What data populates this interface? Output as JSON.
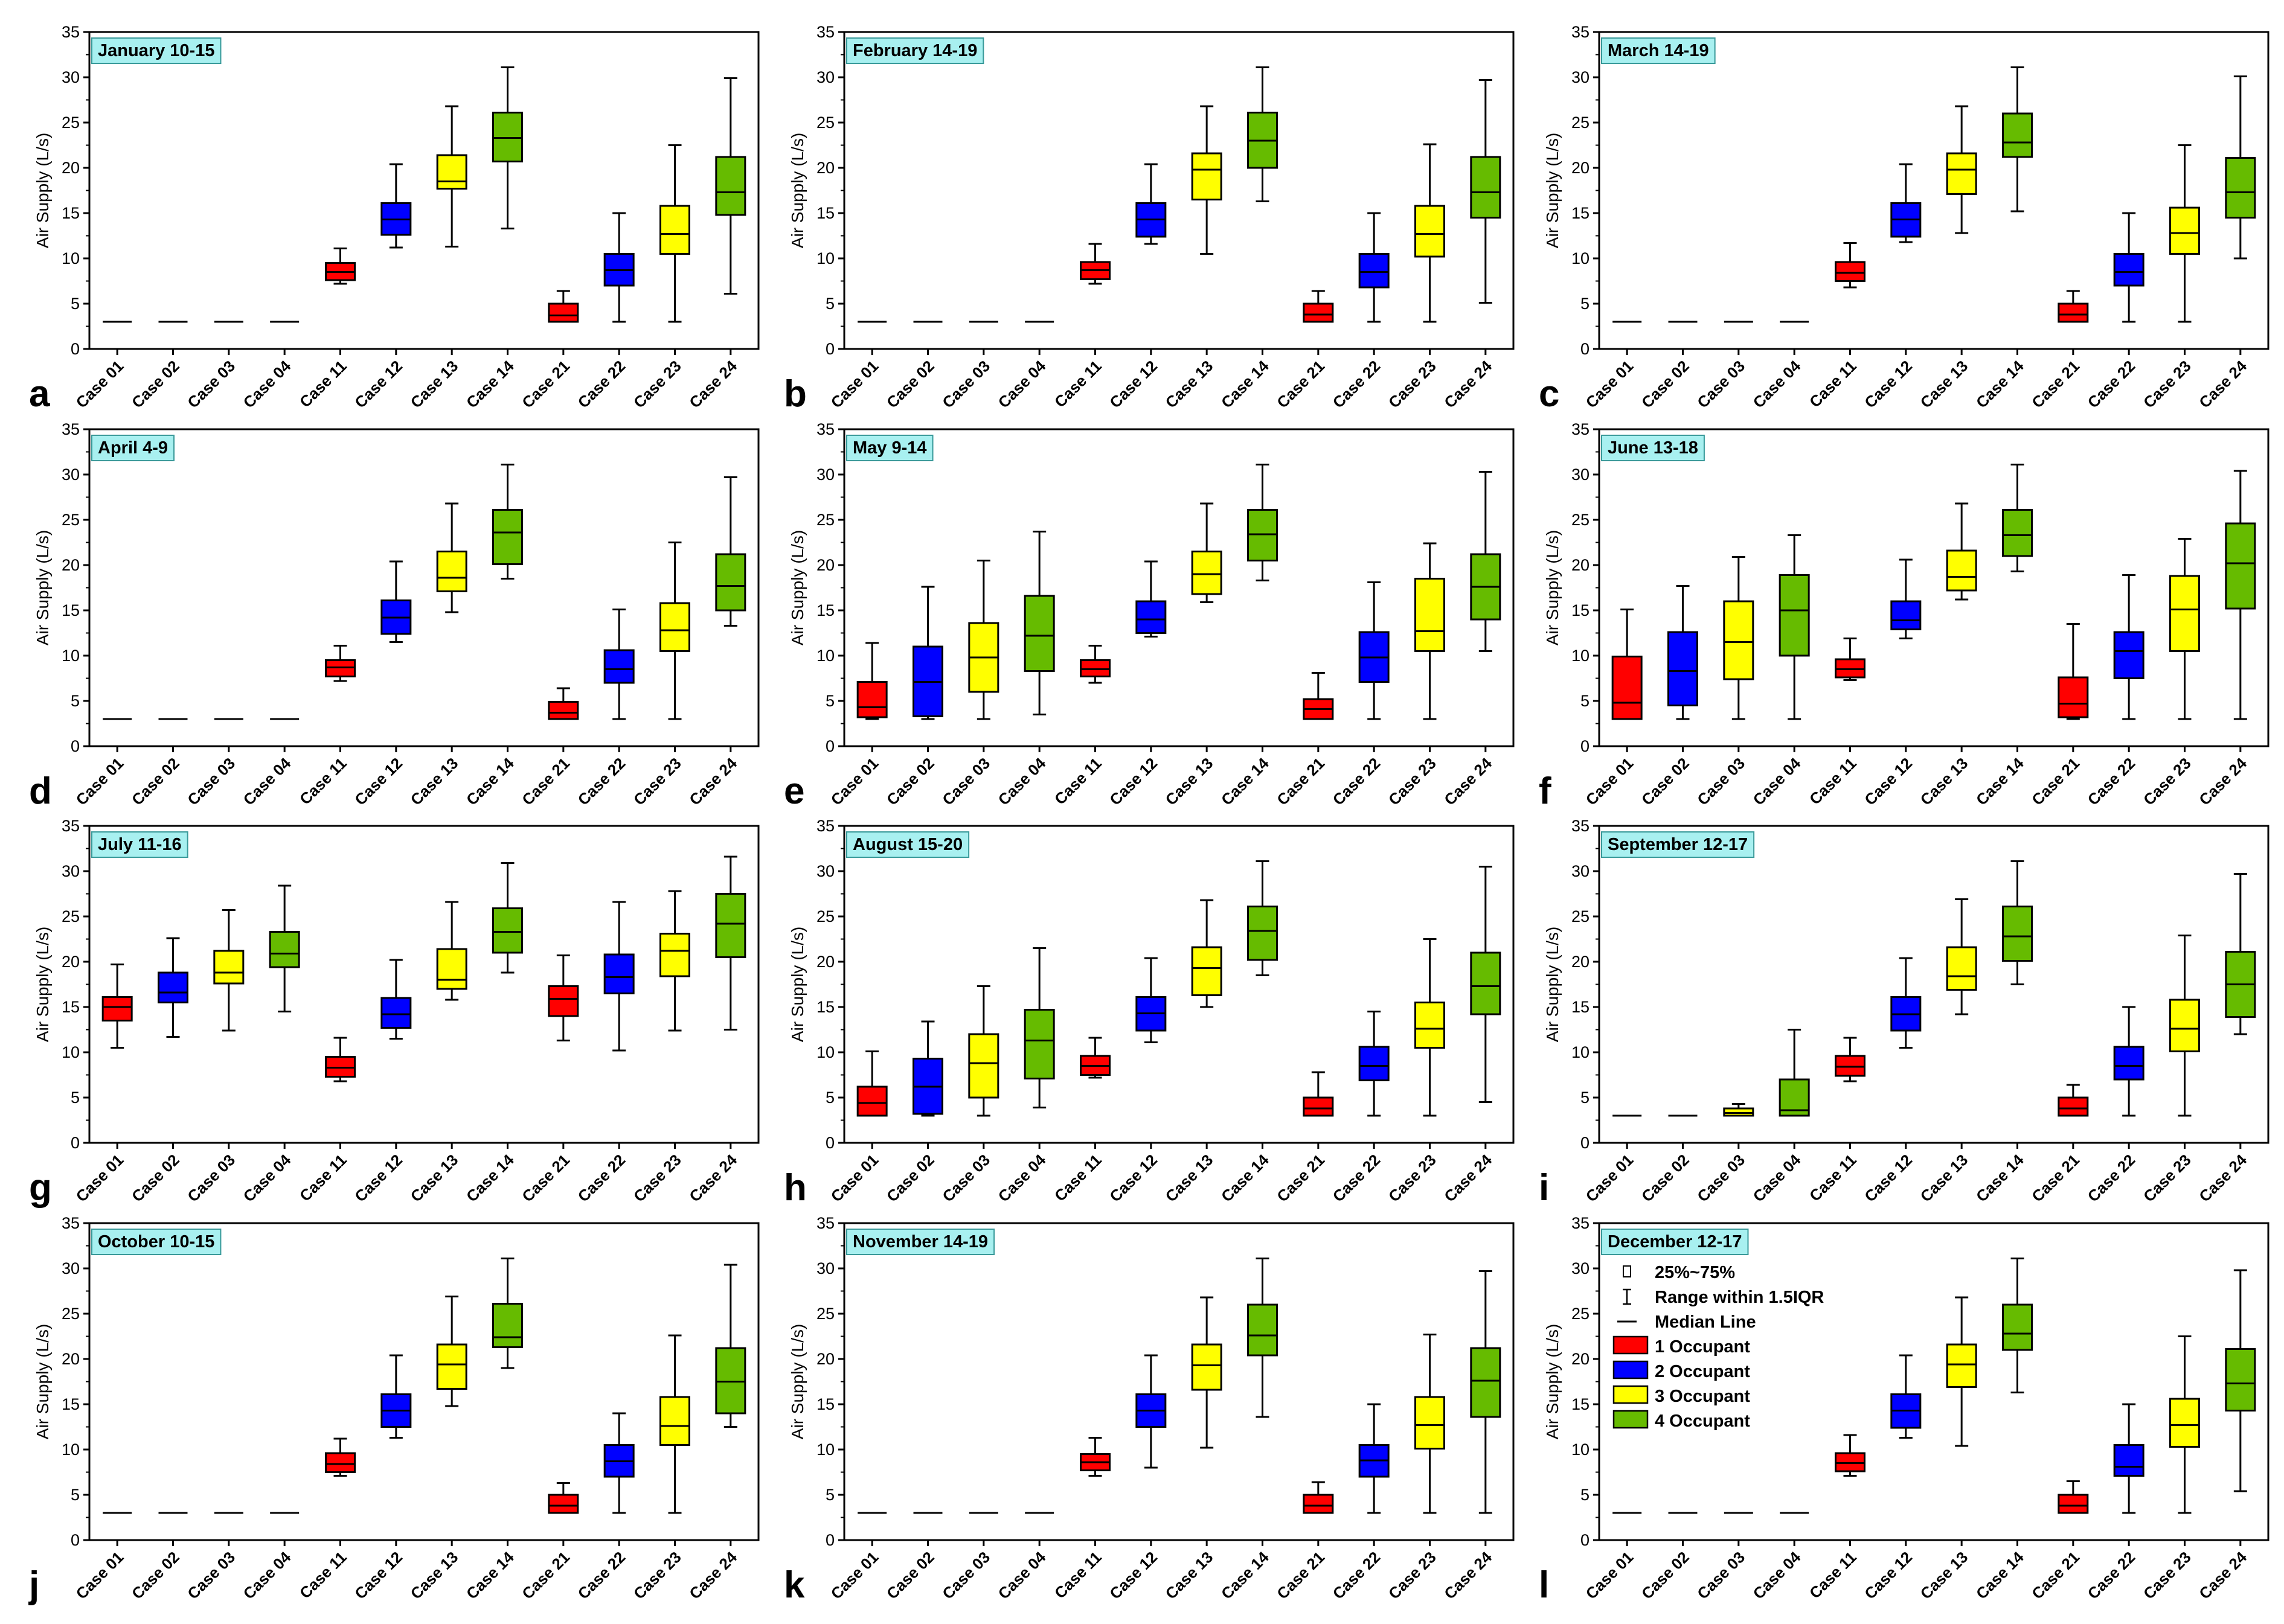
{
  "chart_data": {
    "type": "box",
    "ylabel": "Air Supply (L/s)",
    "ylim": [
      0,
      35
    ],
    "yticks": [
      0,
      5,
      10,
      15,
      20,
      25,
      30,
      35
    ],
    "categories": [
      "Case 01",
      "Case 02",
      "Case 03",
      "Case 04",
      "Case 11",
      "Case 12",
      "Case 13",
      "Case 14",
      "Case 21",
      "Case 22",
      "Case 23",
      "Case 24"
    ],
    "category_groups": [
      1,
      2,
      3,
      4,
      1,
      2,
      3,
      4,
      1,
      2,
      3,
      4
    ],
    "colors": {
      "1": "#ff0000",
      "2": "#0000ff",
      "3": "#ffff00",
      "4": "#66bb00"
    },
    "title_box_color": "#a8f0f0",
    "legend": {
      "items": [
        {
          "kind": "box-symbol",
          "label": "25%~75%"
        },
        {
          "kind": "whisker-symbol",
          "label": "Range within 1.5IQR"
        },
        {
          "kind": "line-symbol",
          "label": "Median Line"
        },
        {
          "kind": "color",
          "group": 1,
          "label": "1 Occupant"
        },
        {
          "kind": "color",
          "group": 2,
          "label": "2 Occupant"
        },
        {
          "kind": "color",
          "group": 3,
          "label": "3 Occupant"
        },
        {
          "kind": "color",
          "group": 4,
          "label": "4 Occupant"
        }
      ],
      "panel": 11
    },
    "panels": [
      {
        "letter": "a",
        "title": "January 10-15",
        "boxes": [
          [
            3,
            3,
            3,
            3,
            3
          ],
          [
            3,
            3,
            3,
            3,
            3
          ],
          [
            3,
            3,
            3,
            3,
            3
          ],
          [
            3,
            3,
            3,
            3,
            3
          ],
          [
            7.2,
            7.6,
            8.5,
            9.5,
            11.1
          ],
          [
            11.2,
            12.6,
            14.3,
            16.1,
            20.4
          ],
          [
            11.3,
            17.7,
            18.5,
            21.4,
            26.8
          ],
          [
            13.3,
            20.7,
            23.3,
            26.1,
            31.1
          ],
          [
            3,
            3,
            3.7,
            5,
            6.4
          ],
          [
            3,
            7,
            8.7,
            10.5,
            15
          ],
          [
            3,
            10.5,
            12.7,
            15.8,
            22.5
          ],
          [
            6.1,
            14.8,
            17.3,
            21.2,
            29.9
          ]
        ]
      },
      {
        "letter": "b",
        "title": "February 14-19",
        "boxes": [
          [
            3,
            3,
            3,
            3,
            3
          ],
          [
            3,
            3,
            3,
            3,
            3
          ],
          [
            3,
            3,
            3,
            3,
            3
          ],
          [
            3,
            3,
            3,
            3,
            3
          ],
          [
            7.2,
            7.7,
            8.7,
            9.6,
            11.6
          ],
          [
            11.6,
            12.4,
            14.3,
            16.1,
            20.4
          ],
          [
            10.5,
            16.5,
            19.8,
            21.6,
            26.8
          ],
          [
            16.3,
            20,
            23,
            26.1,
            31.1
          ],
          [
            3,
            3,
            3.8,
            5,
            6.4
          ],
          [
            3,
            6.8,
            8.5,
            10.5,
            15
          ],
          [
            3,
            10.2,
            12.7,
            15.8,
            22.6
          ],
          [
            5.1,
            14.5,
            17.3,
            21.2,
            29.7
          ]
        ]
      },
      {
        "letter": "c",
        "title": "March 14-19",
        "boxes": [
          [
            3,
            3,
            3,
            3,
            3
          ],
          [
            3,
            3,
            3,
            3,
            3
          ],
          [
            3,
            3,
            3,
            3,
            3
          ],
          [
            3,
            3,
            3,
            3,
            3
          ],
          [
            6.8,
            7.5,
            8.4,
            9.6,
            11.7
          ],
          [
            11.8,
            12.4,
            14.3,
            16.1,
            20.4
          ],
          [
            12.8,
            17.1,
            19.8,
            21.6,
            26.8
          ],
          [
            15.2,
            21.2,
            22.8,
            26,
            31.1
          ],
          [
            3,
            3,
            3.8,
            5,
            6.4
          ],
          [
            3,
            7,
            8.5,
            10.5,
            15
          ],
          [
            3,
            10.5,
            12.8,
            15.6,
            22.5
          ],
          [
            10,
            14.5,
            17.3,
            21.1,
            30.1
          ]
        ]
      },
      {
        "letter": "d",
        "title": "April 4-9",
        "boxes": [
          [
            3,
            3,
            3,
            3,
            3
          ],
          [
            3,
            3,
            3,
            3,
            3
          ],
          [
            3,
            3,
            3,
            3,
            3
          ],
          [
            3,
            3,
            3,
            3,
            3
          ],
          [
            7.2,
            7.7,
            8.7,
            9.5,
            11.1
          ],
          [
            11.5,
            12.4,
            14.2,
            16.1,
            20.4
          ],
          [
            14.8,
            17.1,
            18.6,
            21.5,
            26.8
          ],
          [
            18.5,
            20.1,
            23.6,
            26.1,
            31.1
          ],
          [
            3,
            3,
            3.7,
            4.9,
            6.4
          ],
          [
            3,
            7,
            8.5,
            10.6,
            15.1
          ],
          [
            3,
            10.5,
            12.8,
            15.8,
            22.5
          ],
          [
            13.3,
            15,
            17.7,
            21.2,
            29.7
          ]
        ]
      },
      {
        "letter": "e",
        "title": "May 9-14",
        "boxes": [
          [
            3,
            3.2,
            4.3,
            7.1,
            11.4
          ],
          [
            3,
            3.3,
            7.1,
            11,
            17.6
          ],
          [
            3,
            6,
            9.8,
            13.6,
            20.5
          ],
          [
            3.5,
            8.3,
            12.2,
            16.6,
            23.7
          ],
          [
            7,
            7.7,
            8.5,
            9.5,
            11.1
          ],
          [
            12.1,
            12.5,
            14,
            16,
            20.4
          ],
          [
            15.9,
            16.8,
            19,
            21.5,
            26.8
          ],
          [
            18.3,
            20.5,
            23.4,
            26.1,
            31.1
          ],
          [
            3,
            3,
            4.1,
            5.2,
            8.1
          ],
          [
            3,
            7.1,
            9.8,
            12.6,
            18.1
          ],
          [
            3,
            10.5,
            12.7,
            18.5,
            22.4
          ],
          [
            10.5,
            14,
            17.6,
            21.2,
            30.3
          ]
        ]
      },
      {
        "letter": "f",
        "title": "June 13-18",
        "boxes": [
          [
            3,
            3,
            4.8,
            9.9,
            15.1
          ],
          [
            3,
            4.5,
            8.3,
            12.6,
            17.7
          ],
          [
            3,
            7.4,
            11.5,
            16,
            20.9
          ],
          [
            3,
            10,
            15,
            18.9,
            23.3
          ],
          [
            7.3,
            7.6,
            8.5,
            9.6,
            11.9
          ],
          [
            11.9,
            12.9,
            13.9,
            16,
            20.6
          ],
          [
            16.2,
            17.2,
            18.7,
            21.6,
            26.8
          ],
          [
            19.3,
            21,
            23.3,
            26.1,
            31.1
          ],
          [
            3,
            3.2,
            4.7,
            7.6,
            13.5
          ],
          [
            3,
            7.5,
            10.5,
            12.6,
            18.9
          ],
          [
            3,
            10.5,
            15.1,
            18.8,
            22.9
          ],
          [
            3,
            15.2,
            20.2,
            24.6,
            30.4
          ]
        ]
      },
      {
        "letter": "g",
        "title": "July 11-16",
        "boxes": [
          [
            10.5,
            13.5,
            15,
            16.1,
            19.7
          ],
          [
            11.7,
            15.5,
            16.6,
            18.8,
            22.6
          ],
          [
            12.4,
            17.6,
            18.8,
            21.2,
            25.7
          ],
          [
            14.5,
            19.4,
            20.9,
            23.3,
            28.4
          ],
          [
            6.8,
            7.3,
            8.3,
            9.5,
            11.6
          ],
          [
            11.5,
            12.7,
            14.2,
            16,
            20.2
          ],
          [
            15.8,
            17,
            18,
            21.4,
            26.6
          ],
          [
            18.8,
            21,
            23.3,
            25.9,
            30.9
          ],
          [
            11.3,
            14,
            15.9,
            17.3,
            20.7
          ],
          [
            10.2,
            16.5,
            18.3,
            20.8,
            26.6
          ],
          [
            12.4,
            18.4,
            21.2,
            23.1,
            27.8
          ],
          [
            12.5,
            20.5,
            24.2,
            27.5,
            31.6
          ]
        ]
      },
      {
        "letter": "h",
        "title": "August 15-20",
        "boxes": [
          [
            3,
            3,
            4.4,
            6.2,
            10.1
          ],
          [
            3,
            3.2,
            6.2,
            9.3,
            13.4
          ],
          [
            3,
            5,
            8.8,
            12,
            17.3
          ],
          [
            3.9,
            7.1,
            11.3,
            14.7,
            21.5
          ],
          [
            7.2,
            7.5,
            8.5,
            9.6,
            11.6
          ],
          [
            11.1,
            12.4,
            14.3,
            16.1,
            20.4
          ],
          [
            15,
            16.3,
            19.3,
            21.6,
            26.8
          ],
          [
            18.5,
            20.2,
            23.4,
            26.1,
            31.1
          ],
          [
            3,
            3,
            3.8,
            5,
            7.8
          ],
          [
            3,
            6.9,
            8.5,
            10.6,
            14.5
          ],
          [
            3,
            10.5,
            12.6,
            15.5,
            22.5
          ],
          [
            4.5,
            14.2,
            17.3,
            21,
            30.5
          ]
        ]
      },
      {
        "letter": "i",
        "title": "September 12-17",
        "boxes": [
          [
            3,
            3,
            3,
            3,
            3
          ],
          [
            3,
            3,
            3,
            3,
            3
          ],
          [
            3,
            3,
            3.3,
            3.8,
            4.3
          ],
          [
            3,
            3,
            3.6,
            7,
            12.5
          ],
          [
            6.8,
            7.4,
            8.4,
            9.6,
            11.6
          ],
          [
            10.5,
            12.4,
            14.2,
            16.1,
            20.4
          ],
          [
            14.2,
            16.9,
            18.4,
            21.6,
            26.9
          ],
          [
            17.5,
            20.1,
            22.8,
            26.1,
            31.1
          ],
          [
            3,
            3,
            3.8,
            5,
            6.4
          ],
          [
            3,
            7,
            8.5,
            10.6,
            15
          ],
          [
            3,
            10.1,
            12.6,
            15.8,
            22.9
          ],
          [
            12,
            13.9,
            17.5,
            21.1,
            29.7
          ]
        ]
      },
      {
        "letter": "j",
        "title": "October 10-15",
        "boxes": [
          [
            3,
            3,
            3,
            3,
            3
          ],
          [
            3,
            3,
            3,
            3,
            3
          ],
          [
            3,
            3,
            3,
            3,
            3
          ],
          [
            3,
            3,
            3,
            3,
            3
          ],
          [
            7.1,
            7.5,
            8.4,
            9.6,
            11.2
          ],
          [
            11.3,
            12.5,
            14.3,
            16.1,
            20.4
          ],
          [
            14.8,
            16.7,
            19.4,
            21.6,
            26.9
          ],
          [
            19,
            21.3,
            22.4,
            26.1,
            31.1
          ],
          [
            3,
            3,
            3.8,
            5,
            6.3
          ],
          [
            3,
            7,
            8.7,
            10.5,
            14
          ],
          [
            3,
            10.5,
            12.6,
            15.8,
            22.6
          ],
          [
            12.5,
            14,
            17.5,
            21.2,
            30.4
          ]
        ]
      },
      {
        "letter": "k",
        "title": "November 14-19",
        "boxes": [
          [
            3,
            3,
            3,
            3,
            3
          ],
          [
            3,
            3,
            3,
            3,
            3
          ],
          [
            3,
            3,
            3,
            3,
            3
          ],
          [
            3,
            3,
            3,
            3,
            3
          ],
          [
            7.1,
            7.7,
            8.6,
            9.5,
            11.3
          ],
          [
            8,
            12.5,
            14.3,
            16.1,
            20.4
          ],
          [
            10.2,
            16.6,
            19.3,
            21.6,
            26.8
          ],
          [
            13.6,
            20.4,
            22.6,
            26,
            31.1
          ],
          [
            3,
            3,
            3.8,
            5,
            6.4
          ],
          [
            3,
            7,
            8.8,
            10.5,
            15
          ],
          [
            3,
            10.1,
            12.7,
            15.8,
            22.7
          ],
          [
            3,
            13.6,
            17.6,
            21.2,
            29.7
          ]
        ]
      },
      {
        "letter": "l",
        "title": "December 12-17",
        "boxes": [
          [
            3,
            3,
            3,
            3,
            3
          ],
          [
            3,
            3,
            3,
            3,
            3
          ],
          [
            3,
            3,
            3,
            3,
            3
          ],
          [
            3,
            3,
            3,
            3,
            3
          ],
          [
            7.1,
            7.6,
            8.5,
            9.6,
            11.6
          ],
          [
            11.3,
            12.4,
            14.3,
            16.1,
            20.4
          ],
          [
            10.4,
            16.9,
            19.4,
            21.6,
            26.8
          ],
          [
            16.3,
            21,
            22.8,
            26,
            31.1
          ],
          [
            3,
            3,
            3.8,
            5,
            6.5
          ],
          [
            3,
            7.1,
            8.1,
            10.5,
            15
          ],
          [
            3,
            10.3,
            12.7,
            15.6,
            22.5
          ],
          [
            5.4,
            14.3,
            17.3,
            21.1,
            29.8
          ]
        ]
      }
    ]
  }
}
